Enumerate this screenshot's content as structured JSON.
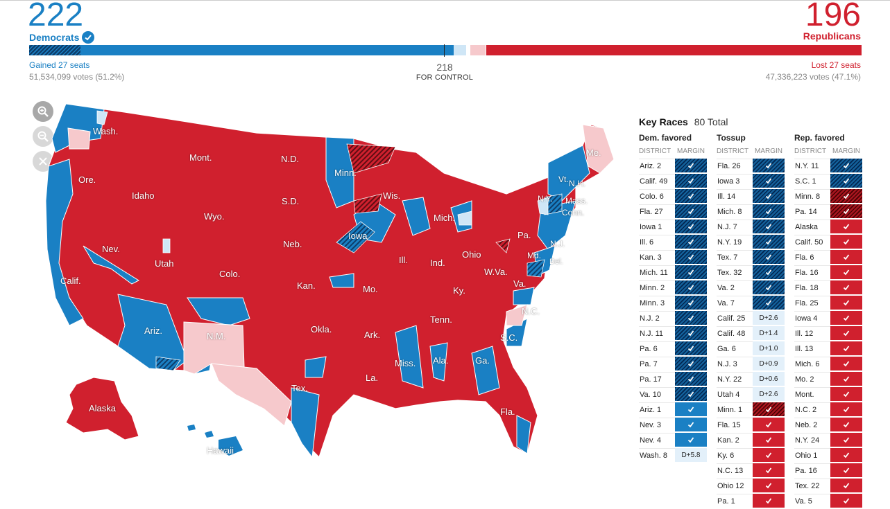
{
  "header": {
    "dem_seats": "222",
    "dem_label": "Democrats",
    "rep_seats": "196",
    "rep_label": "Republicans",
    "dem_change": "Gained 27 seats",
    "dem_votes": "51,534,099 votes (51.2%)",
    "rep_change": "Lost 27 seats",
    "rep_votes": "47,336,223 votes (47.1%)",
    "control_number": "218",
    "control_label": "FOR CONTROL"
  },
  "colors": {
    "dem": "#1a80c4",
    "rep": "#d0202e",
    "lean_rep": "#f6c9cc",
    "lean_dem": "#cfe6f6",
    "flip_hatch_dem": "#0d3d6a",
    "flip_hatch_rep": "#6b0f16"
  },
  "map": {
    "zoom_in_icon": "zoom-in-icon",
    "zoom_out_icon": "zoom-out-icon",
    "reset_icon": "close-icon",
    "state_labels": [
      "Wash.",
      "Mont.",
      "N.D.",
      "Minn.",
      "Me.",
      "Ore.",
      "Idaho",
      "S.D.",
      "Wis.",
      "Vt.",
      "N.H.",
      "N.Y.",
      "Mass.",
      "Wyo.",
      "Mich.",
      "Conn.",
      "Iowa",
      "Neb.",
      "Pa.",
      "N.J.",
      "Nev.",
      "Utah",
      "Ill.",
      "Ind.",
      "Ohio",
      "Md.",
      "Colo.",
      "W.Va.",
      "Del.",
      "Calif.",
      "Kan.",
      "Mo.",
      "Va.",
      "Ky.",
      "N.C.",
      "Tenn.",
      "Okla.",
      "Ariz.",
      "N.M.",
      "Ark.",
      "S.C.",
      "Miss.",
      "Ala.",
      "Ga.",
      "La.",
      "Tex.",
      "Alaska",
      "Fla.",
      "Hawaii"
    ]
  },
  "key_races": {
    "title": "Key Races",
    "total": "80 Total",
    "district_header": "DISTRICT",
    "margin_header": "MARGIN",
    "columns": [
      {
        "title": "Dem. favored",
        "rows": [
          {
            "district": "Ariz. 2",
            "margin": "✓",
            "result": "hatch-d"
          },
          {
            "district": "Calif. 49",
            "margin": "✓",
            "result": "hatch-d"
          },
          {
            "district": "Colo. 6",
            "margin": "✓",
            "result": "hatch-d"
          },
          {
            "district": "Fla. 27",
            "margin": "✓",
            "result": "hatch-d"
          },
          {
            "district": "Iowa 1",
            "margin": "✓",
            "result": "hatch-d"
          },
          {
            "district": "Ill. 6",
            "margin": "✓",
            "result": "hatch-d"
          },
          {
            "district": "Kan. 3",
            "margin": "✓",
            "result": "hatch-d"
          },
          {
            "district": "Mich. 11",
            "margin": "✓",
            "result": "hatch-d"
          },
          {
            "district": "Minn. 2",
            "margin": "✓",
            "result": "hatch-d"
          },
          {
            "district": "Minn. 3",
            "margin": "✓",
            "result": "hatch-d"
          },
          {
            "district": "N.J. 2",
            "margin": "✓",
            "result": "hatch-d"
          },
          {
            "district": "N.J. 11",
            "margin": "✓",
            "result": "hatch-d"
          },
          {
            "district": "Pa. 6",
            "margin": "✓",
            "result": "hatch-d"
          },
          {
            "district": "Pa. 7",
            "margin": "✓",
            "result": "hatch-d"
          },
          {
            "district": "Pa. 17",
            "margin": "✓",
            "result": "hatch-d"
          },
          {
            "district": "Va. 10",
            "margin": "✓",
            "result": "hatch-d"
          },
          {
            "district": "Ariz. 1",
            "margin": "✓",
            "result": "solid-d"
          },
          {
            "district": "Nev. 3",
            "margin": "✓",
            "result": "solid-d"
          },
          {
            "district": "Nev. 4",
            "margin": "✓",
            "result": "solid-d"
          },
          {
            "district": "Wash. 8",
            "margin": "D+5.8",
            "result": "lean-d"
          }
        ]
      },
      {
        "title": "Tossup",
        "rows": [
          {
            "district": "Fla. 26",
            "margin": "✓",
            "result": "hatch-d"
          },
          {
            "district": "Iowa 3",
            "margin": "✓",
            "result": "hatch-d"
          },
          {
            "district": "Ill. 14",
            "margin": "✓",
            "result": "hatch-d"
          },
          {
            "district": "Mich. 8",
            "margin": "✓",
            "result": "hatch-d"
          },
          {
            "district": "N.J. 7",
            "margin": "✓",
            "result": "hatch-d"
          },
          {
            "district": "N.Y. 19",
            "margin": "✓",
            "result": "hatch-d"
          },
          {
            "district": "Tex. 7",
            "margin": "✓",
            "result": "hatch-d"
          },
          {
            "district": "Tex. 32",
            "margin": "✓",
            "result": "hatch-d"
          },
          {
            "district": "Va. 2",
            "margin": "✓",
            "result": "hatch-d"
          },
          {
            "district": "Va. 7",
            "margin": "✓",
            "result": "hatch-d"
          },
          {
            "district": "Calif. 25",
            "margin": "D+2.6",
            "result": "lean-d"
          },
          {
            "district": "Calif. 48",
            "margin": "D+1.4",
            "result": "lean-d"
          },
          {
            "district": "Ga. 6",
            "margin": "D+1.0",
            "result": "lean-d"
          },
          {
            "district": "N.J. 3",
            "margin": "D+0.9",
            "result": "lean-d"
          },
          {
            "district": "N.Y. 22",
            "margin": "D+0.6",
            "result": "lean-d"
          },
          {
            "district": "Utah 4",
            "margin": "D+2.6",
            "result": "lean-d"
          },
          {
            "district": "Minn. 1",
            "margin": "✓",
            "result": "hatch-r"
          },
          {
            "district": "Fla. 15",
            "margin": "✓",
            "result": "solid-r"
          },
          {
            "district": "Kan. 2",
            "margin": "✓",
            "result": "solid-r"
          },
          {
            "district": "Ky. 6",
            "margin": "✓",
            "result": "solid-r"
          },
          {
            "district": "N.C. 13",
            "margin": "✓",
            "result": "solid-r"
          },
          {
            "district": "Ohio 12",
            "margin": "✓",
            "result": "solid-r"
          },
          {
            "district": "Pa. 1",
            "margin": "✓",
            "result": "solid-r"
          }
        ]
      },
      {
        "title": "Rep. favored",
        "rows": [
          {
            "district": "N.Y. 11",
            "margin": "✓",
            "result": "hatch-d"
          },
          {
            "district": "S.C. 1",
            "margin": "✓",
            "result": "hatch-d"
          },
          {
            "district": "Minn. 8",
            "margin": "✓",
            "result": "hatch-r"
          },
          {
            "district": "Pa. 14",
            "margin": "✓",
            "result": "hatch-r"
          },
          {
            "district": "Alaska",
            "margin": "✓",
            "result": "solid-r"
          },
          {
            "district": "Calif. 50",
            "margin": "✓",
            "result": "solid-r"
          },
          {
            "district": "Fla. 6",
            "margin": "✓",
            "result": "solid-r"
          },
          {
            "district": "Fla. 16",
            "margin": "✓",
            "result": "solid-r"
          },
          {
            "district": "Fla. 18",
            "margin": "✓",
            "result": "solid-r"
          },
          {
            "district": "Fla. 25",
            "margin": "✓",
            "result": "solid-r"
          },
          {
            "district": "Iowa 4",
            "margin": "✓",
            "result": "solid-r"
          },
          {
            "district": "Ill. 12",
            "margin": "✓",
            "result": "solid-r"
          },
          {
            "district": "Ill. 13",
            "margin": "✓",
            "result": "solid-r"
          },
          {
            "district": "Mich. 6",
            "margin": "✓",
            "result": "solid-r"
          },
          {
            "district": "Mo. 2",
            "margin": "✓",
            "result": "solid-r"
          },
          {
            "district": "Mont.",
            "margin": "✓",
            "result": "solid-r"
          },
          {
            "district": "N.C. 2",
            "margin": "✓",
            "result": "solid-r"
          },
          {
            "district": "Neb. 2",
            "margin": "✓",
            "result": "solid-r"
          },
          {
            "district": "N.Y. 24",
            "margin": "✓",
            "result": "solid-r"
          },
          {
            "district": "Ohio 1",
            "margin": "✓",
            "result": "solid-r"
          },
          {
            "district": "Pa. 16",
            "margin": "✓",
            "result": "solid-r"
          },
          {
            "district": "Tex. 22",
            "margin": "✓",
            "result": "solid-r"
          },
          {
            "district": "Va. 5",
            "margin": "✓",
            "result": "solid-r"
          }
        ]
      }
    ]
  }
}
